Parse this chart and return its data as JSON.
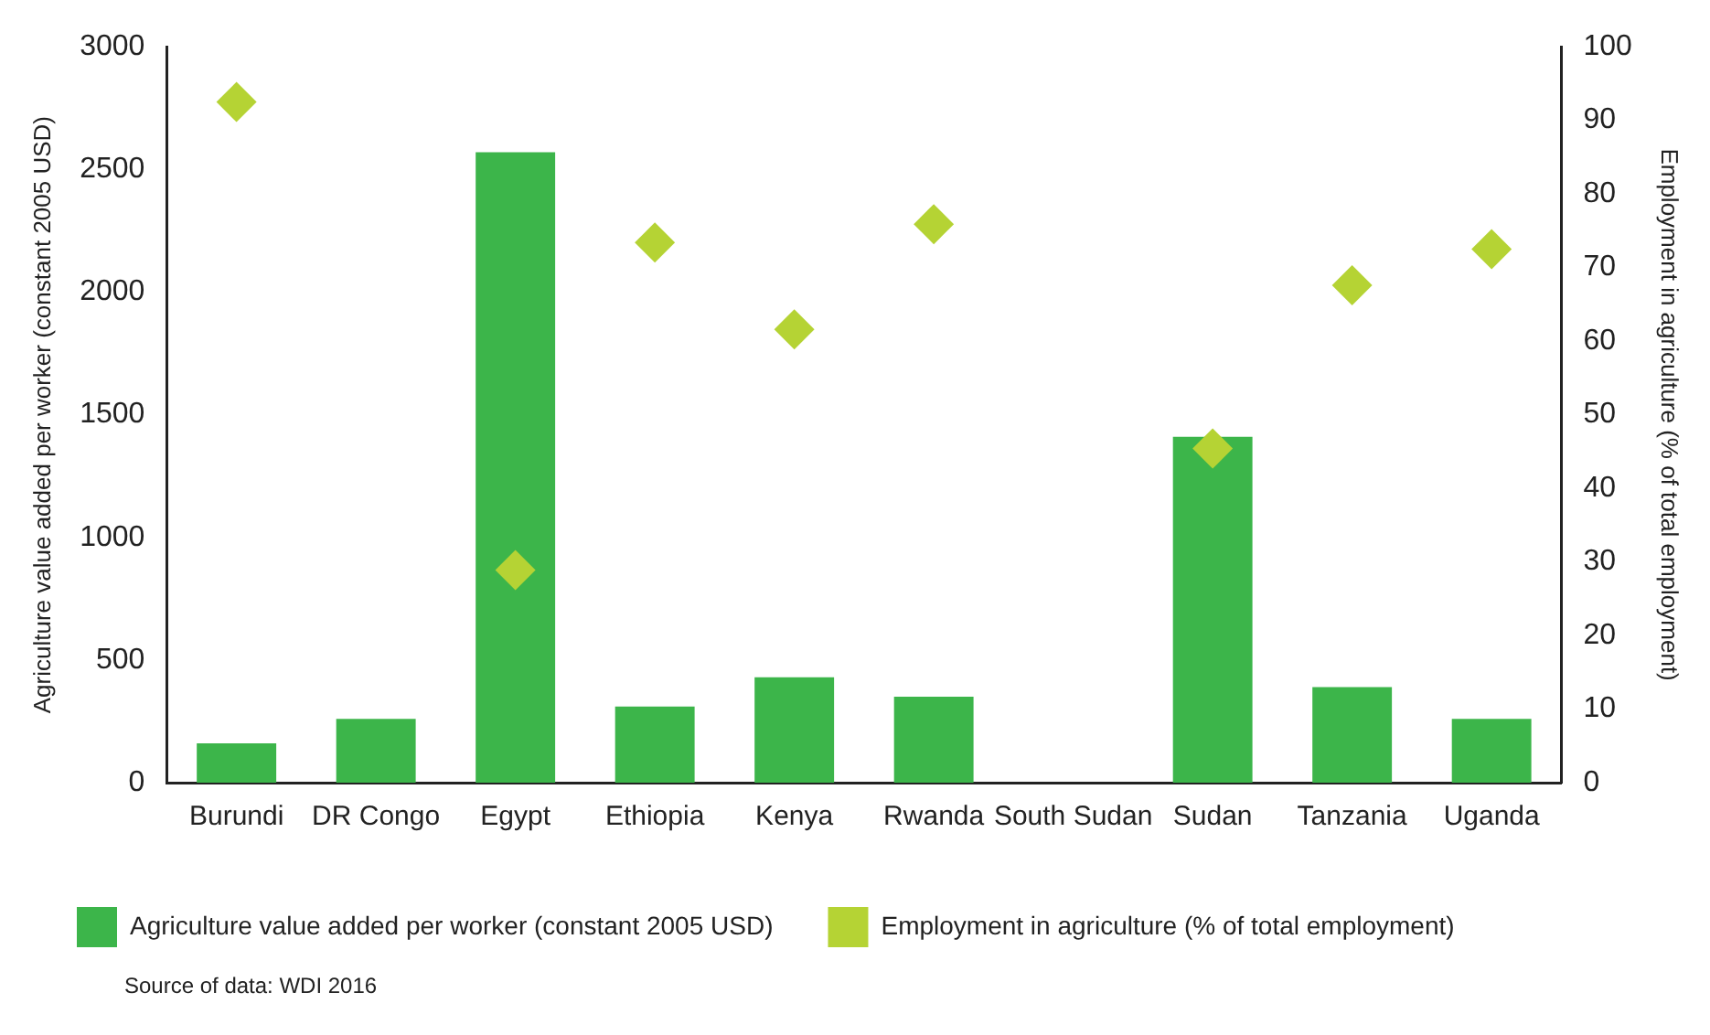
{
  "chart_data": {
    "type": "bar",
    "categories": [
      "Burundi",
      "DR Congo",
      "Egypt",
      "Ethiopia",
      "Kenya",
      "Rwanda",
      "South Sudan",
      "Sudan",
      "Tanzania",
      "Uganda"
    ],
    "series": [
      {
        "name": "Agriculture value added per worker (constant 2005 USD)",
        "color": "#3cb54a",
        "values": [
          160,
          260,
          2570,
          310,
          430,
          350,
          null,
          1410,
          390,
          260
        ]
      },
      {
        "name": "Employment in agriculture (% of total employment)",
        "type": "scatter",
        "axis": "y2",
        "marker": "diamond",
        "color": "#b5d334",
        "values": [
          92.5,
          null,
          28.9,
          73.4,
          61.6,
          75.9,
          null,
          45.4,
          67.6,
          72.5
        ]
      }
    ],
    "ylabel": "Agriculture value added per worker (constant 2005 USD)",
    "y2label": "Employment in agriculture (% of total employment)",
    "ylim": [
      0,
      3000
    ],
    "yticks": [
      0,
      500,
      1000,
      1500,
      2000,
      2500,
      3000
    ],
    "y2lim": [
      0,
      100
    ],
    "y2ticks": [
      0,
      10,
      20,
      30,
      40,
      50,
      60,
      70,
      80,
      90,
      100
    ],
    "grid": false,
    "legend": "bottom",
    "annotations": [
      "Source of data: WDI 2016"
    ]
  }
}
